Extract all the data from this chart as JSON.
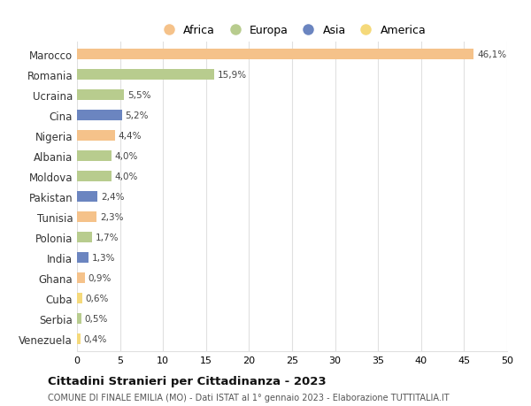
{
  "countries": [
    "Marocco",
    "Romania",
    "Ucraina",
    "Cina",
    "Nigeria",
    "Albania",
    "Moldova",
    "Pakistan",
    "Tunisia",
    "Polonia",
    "India",
    "Ghana",
    "Cuba",
    "Serbia",
    "Venezuela"
  ],
  "values": [
    46.1,
    15.9,
    5.5,
    5.2,
    4.4,
    4.0,
    4.0,
    2.4,
    2.3,
    1.7,
    1.3,
    0.9,
    0.6,
    0.5,
    0.4
  ],
  "labels": [
    "46,1%",
    "15,9%",
    "5,5%",
    "5,2%",
    "4,4%",
    "4,0%",
    "4,0%",
    "2,4%",
    "2,3%",
    "1,7%",
    "1,3%",
    "0,9%",
    "0,6%",
    "0,5%",
    "0,4%"
  ],
  "colors": [
    "#f5c28a",
    "#b8cc8e",
    "#b8cc8e",
    "#6b85c0",
    "#f5c28a",
    "#b8cc8e",
    "#b8cc8e",
    "#6b85c0",
    "#f5c28a",
    "#b8cc8e",
    "#6b85c0",
    "#f5c28a",
    "#f5d97a",
    "#b8cc8e",
    "#f5d97a"
  ],
  "legend_labels": [
    "Africa",
    "Europa",
    "Asia",
    "America"
  ],
  "legend_colors": [
    "#f5c28a",
    "#b8cc8e",
    "#6b85c0",
    "#f5d97a"
  ],
  "title": "Cittadini Stranieri per Cittadinanza - 2023",
  "subtitle": "COMUNE DI FINALE EMILIA (MO) - Dati ISTAT al 1° gennaio 2023 - Elaborazione TUTTITALIA.IT",
  "xlim": [
    0,
    50
  ],
  "xticks": [
    0,
    5,
    10,
    15,
    20,
    25,
    30,
    35,
    40,
    45,
    50
  ],
  "background_color": "#ffffff",
  "grid_color": "#e0e0e0"
}
